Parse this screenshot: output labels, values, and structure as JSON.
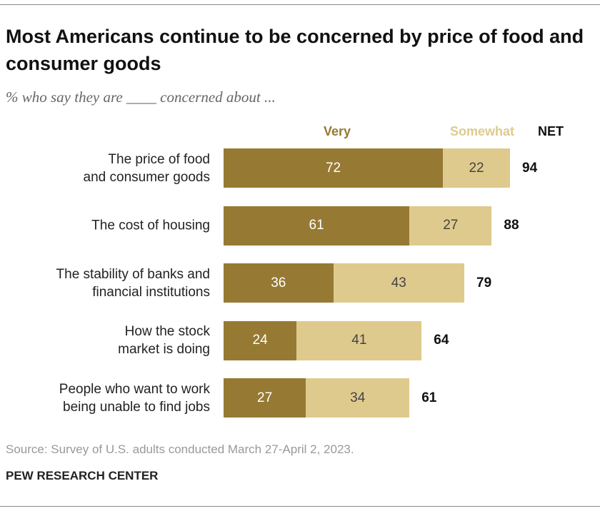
{
  "chart_data": {
    "type": "stacked-bar",
    "title": "Most Americans continue to be concerned by price of food and consumer goods",
    "subtitle": "% who say they are ____ concerned about ...",
    "categories": [
      "The price of food\nand consumer goods",
      "The cost of housing",
      "The stability of banks and\nfinancial institutions",
      "How the stock\nmarket is doing",
      "People who want to work\nbeing unable to find jobs"
    ],
    "series": [
      {
        "name": "Very",
        "color": "#967a33",
        "label_color": "#ffffff",
        "values": [
          72,
          61,
          36,
          24,
          27
        ]
      },
      {
        "name": "Somewhat",
        "color": "#dfca8d",
        "label_color": "#444444",
        "values": [
          22,
          27,
          43,
          41,
          34
        ]
      }
    ],
    "net": {
      "name": "NET",
      "values": [
        94,
        88,
        79,
        64,
        61
      ]
    },
    "source": "Source: Survey of U.S. adults conducted March 27-April 2, 2023.",
    "credit": "PEW RESEARCH CENTER"
  }
}
